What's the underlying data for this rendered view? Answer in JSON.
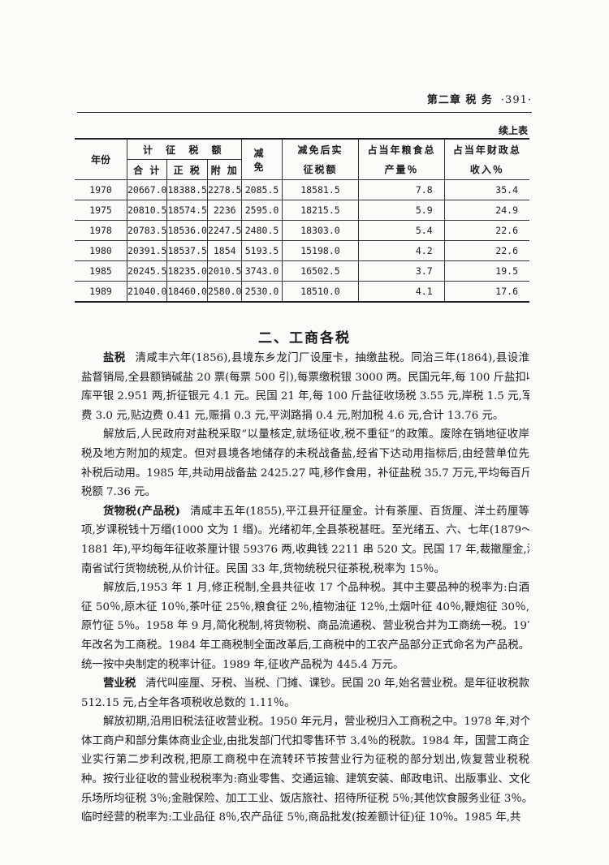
{
  "header": {
    "chapter": "第二章 税 务",
    "page_number": "·391·"
  },
  "table": {
    "continued_label": "续上表",
    "headers": {
      "year": "年份",
      "assessed": "计 征 税 额",
      "total": "合 计",
      "main_tax": "正 税",
      "surcharge": "附 加",
      "exemption": "减 免",
      "actual": "减免后实征税额",
      "grain_pct": "占当年粮食总产量％",
      "revenue_pct": "占当年财政总收入％"
    },
    "rows": [
      [
        "1970",
        "20667.0",
        "18388.5",
        "2278.5",
        "2085.5",
        "18581.5",
        "7.8",
        "35.4"
      ],
      [
        "1975",
        "20810.5",
        "18574.5",
        "2236",
        "2595.0",
        "18215.5",
        "5.9",
        "24.9"
      ],
      [
        "1978",
        "20783.5",
        "18536.0",
        "2247.5",
        "2480.5",
        "18303.0",
        "5.4",
        "22.6"
      ],
      [
        "1980",
        "20391.5",
        "18537.5",
        "1854",
        "5193.5",
        "15198.0",
        "4.2",
        "22.6"
      ],
      [
        "1985",
        "20245.5",
        "18235.0",
        "2010.5",
        "3743.0",
        "16502.5",
        "3.7",
        "19.5"
      ],
      [
        "1989",
        "21040.0",
        "18460.0",
        "2580.0",
        "2530.0",
        "18510.0",
        "4.1",
        "17.6"
      ]
    ]
  },
  "section_title": "二、工商各税",
  "paragraphs": [
    {
      "lead": "盐税",
      "lines": [
        "清咸丰六年(1856),县境东乡龙门厂设厘卡，抽缴盐税。同治三年(1864),县设淮",
        "盐督销局,全县额销碱盐 20 票(每票 500 引),每票缴税银 3000 两。民国元年,每 100 斤盐扣收",
        "库平银 2.951 两,折征银元 4.1 元。民国 21 年,每 100 斤盐征收场税 3.55 元,岸税 1.5 元,军",
        "费 3.0 元,贴边费 0.41 元,赈捐 0.3 元,平浏路捐 0.4 元,附加税 4.6 元,合计 13.76 元。"
      ]
    },
    {
      "lead": "",
      "lines": [
        "解放后,人民政府对盐税采取“以量核定,就场征收,税不重征”的政策。废除在销地征收岸",
        "税及地方附加的规定。但对县境各地储存的未税战备盐,经省下达动用指标后,由经营单位先",
        "补税后动用。1985 年,共动用战备盐 2425.27 吨,移作食用，补征盐税 35.7 万元,平均每百斤",
        "税额 7.36 元。"
      ]
    },
    {
      "lead": "货物税(产品税)",
      "lines": [
        "清咸丰五年(1855),平江县开征厘金。计有茶厘、百货厘、洋土药厘等",
        "项,岁课税钱十万缗(1000 文为 1 缗)。光绪初年,全县茶税甚旺。至光绪五、六、七年(1879～",
        "1881 年),平均每年征收茶厘计银 59376 两,收典钱 2211 串 520 文。民国 17 年,裁撤厘金,湖",
        "南省试行货物统税,从价计征。民国 33 年,货物统税只征茶税,税率为 15％。"
      ]
    },
    {
      "lead": "",
      "lines": [
        "解放后,1953 年 1 月,修正税制,全县共征收 17 个品种税。其中主要品种的税率为:白酒",
        "征 50％,原木征 10％,茶叶征 25％,粮食征 2％,植物油征 12％,土烟叶征 40％,鞭炮征 30％,",
        "原竹征 5％。1958 年 9 月,简化税制,将货物税、商品流通税、营业税合并为工商统一税。1973",
        "年改名为工商税。1984 年工商税制全面改革后,工商税中的工农产品部分正式命名为产品税。",
        "统一按中央制定的税率计征。1989 年,征收产品税为 445.4 万元。"
      ]
    },
    {
      "lead": "营业税",
      "lines": [
        "清代叫座厘、牙税、当税、门摊、课钞。民国 20 年,始名营业税。是年征收税款",
        "512.15 元,占全年各项税收总数的 1.11％。"
      ]
    },
    {
      "lead": "",
      "lines": [
        "解放初期,沿用旧税法征收营业税。1950 年元月，营业税归入工商税之中。1978 年,对个",
        "体工商户和部分集体商业企业,由批发部门代扣零售环节 3.4％的税款。1984 年，国营工商企",
        "业实行第二步利改税,把原工商税中在流转环节按营业行为征税的部分划出,恢复营业税税",
        "种。按行业征收的营业税税率为:商业零售、交通运输、建筑安装、邮政电讯、出版事业、文化娱",
        "乐场所均征税 3％;金融保险、加工工业、饭店旅社、招待所征税 5％;其他饮食服务业征 3％。",
        "临时经营的税率为:工业品征 8％,农产品征 5％,商品批发(按差额计征)征 10％。1985 年,共"
      ]
    }
  ]
}
